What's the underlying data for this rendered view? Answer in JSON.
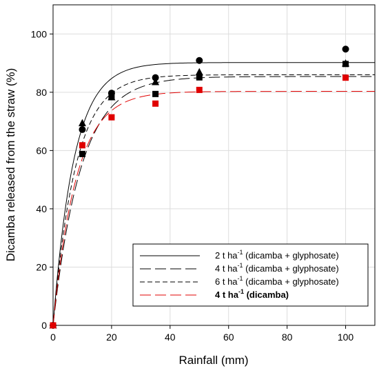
{
  "chart_data": {
    "type": "scatter",
    "xlabel": "Rainfall (mm)",
    "ylabel": "Dicamba released from the straw (%)",
    "xlim": [
      0,
      110
    ],
    "ylim": [
      0,
      110
    ],
    "x_ticks": [
      0,
      20,
      40,
      60,
      80,
      100
    ],
    "y_ticks": [
      0,
      20,
      40,
      60,
      80,
      100
    ],
    "x_tick_labels": [
      "0",
      "20",
      "40",
      "60",
      "80",
      "100"
    ],
    "y_tick_labels": [
      "0",
      "20",
      "40",
      "60",
      "80",
      "100"
    ],
    "grid": true,
    "legend_position": "bottom-right",
    "x": [
      0,
      10,
      20,
      35,
      50,
      100
    ],
    "series": [
      {
        "legend_main": "2 t ha",
        "legend_sup": "-1",
        "legend_rest": " (dicamba + glyphosate)",
        "marker": "circle",
        "color": "#000000",
        "line_style": "solid",
        "values": [
          0,
          67.2,
          79.7,
          85.0,
          90.9,
          94.8
        ],
        "fit": {
          "plateau": 90.2,
          "rate": 0.14
        }
      },
      {
        "legend_main": "4 t ha",
        "legend_sup": "-1",
        "legend_rest": " (dicamba + glyphosate)",
        "marker": "square",
        "color": "#000000",
        "line_style": "long-dash",
        "values": [
          0,
          58.8,
          78.5,
          79.4,
          85.1,
          89.7
        ],
        "fit": {
          "plateau": 85.4,
          "rate": 0.105
        }
      },
      {
        "legend_main": "6 t ha",
        "legend_sup": "-1",
        "legend_rest": " (dicamba + glyphosate)",
        "marker": "triangle",
        "color": "#000000",
        "line_style": "short-dash",
        "values": [
          0,
          69.4,
          78.3,
          83.5,
          86.9,
          89.9
        ],
        "fit": {
          "plateau": 86.0,
          "rate": 0.13
        }
      },
      {
        "legend_main": "4 t ha",
        "legend_sup": "-1",
        "legend_rest": " (dicamba)",
        "legend_bold": true,
        "marker": "square",
        "color": "#e00000",
        "line_style": "red-dash",
        "values": [
          0,
          61.8,
          71.4,
          76.1,
          80.8,
          85.0
        ],
        "fit": {
          "plateau": 80.3,
          "rate": 0.125
        }
      }
    ]
  }
}
